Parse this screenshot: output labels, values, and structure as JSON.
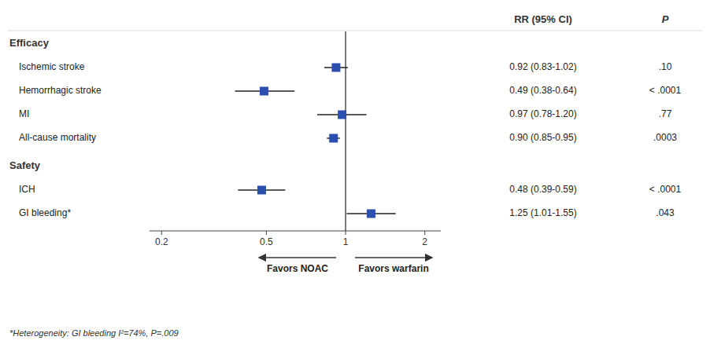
{
  "chart_data": {
    "type": "forest",
    "categories": [
      "Ischemic stroke",
      "Hemorrhagic stroke",
      "MI",
      "All-cause mortality",
      "ICH",
      "GI bleeding*"
    ],
    "groups": [
      "Efficacy",
      "Efficacy",
      "Efficacy",
      "Efficacy",
      "Safety",
      "Safety"
    ],
    "values": [
      0.92,
      0.49,
      0.97,
      0.9,
      0.48,
      1.25
    ],
    "ci_low": [
      0.83,
      0.38,
      0.78,
      0.85,
      0.39,
      1.01
    ],
    "ci_high": [
      1.02,
      0.64,
      1.2,
      0.95,
      0.59,
      1.55
    ],
    "value_labels": [
      "0.92 (0.83-1.02)",
      "0.49 (0.38-0.64)",
      "0.97 (0.78-1.20)",
      "0.90 (0.85-0.95)",
      "0.48 (0.39-0.59)",
      "1.25 (1.01-1.55)"
    ],
    "p_labels": [
      ".10",
      "< .0001",
      ".77",
      ".0003",
      "< .0001",
      ".043"
    ],
    "column_headers": [
      "RR (95% CI)",
      "P"
    ],
    "annotations": [
      "Favors NOAC",
      "Favors warfarin"
    ],
    "footnote": "*Heterogeneity: GI bleeding I²=74%, P=.009",
    "reference": 1,
    "color": "#2b4faf",
    "log": "x",
    "xlim": [
      0.18,
      2.3
    ],
    "xticks": [
      0.2,
      0.5,
      1,
      2
    ],
    "grid": false
  }
}
